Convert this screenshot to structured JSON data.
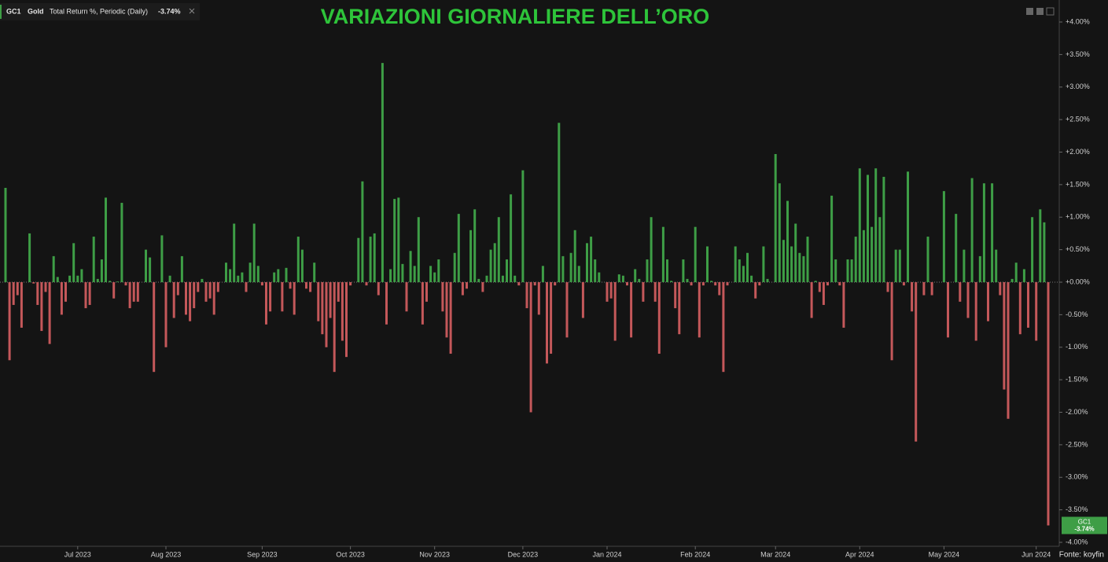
{
  "chart_data": {
    "type": "bar",
    "title": "VARIAZIONI GIORNALIERE DELL’ORO",
    "legend": {
      "ticker": "GC1",
      "name": "Gold",
      "metric": "Total Return %, Periodic (Daily)",
      "last_value": "-3.74%"
    },
    "source": "Fonte: koyfin",
    "up_color": "#3e9e46",
    "down_color": "#c4585a",
    "ylim": [
      -4,
      4
    ],
    "yticks": [
      {
        "value": 4,
        "label": "+4.00%"
      },
      {
        "value": 3.5,
        "label": "+3.50%"
      },
      {
        "value": 3,
        "label": "+3.00%"
      },
      {
        "value": 2.5,
        "label": "+2.50%"
      },
      {
        "value": 2,
        "label": "+2.00%"
      },
      {
        "value": 1.5,
        "label": "+1.50%"
      },
      {
        "value": 1,
        "label": "+1.00%"
      },
      {
        "value": 0.5,
        "label": "+0.50%"
      },
      {
        "value": 0,
        "label": "+0.00%"
      },
      {
        "value": -0.5,
        "label": "-0.50%"
      },
      {
        "value": -1,
        "label": "-1.00%"
      },
      {
        "value": -1.5,
        "label": "-1.50%"
      },
      {
        "value": -2,
        "label": "-2.00%"
      },
      {
        "value": -2.5,
        "label": "-2.50%"
      },
      {
        "value": -3,
        "label": "-3.00%"
      },
      {
        "value": -3.5,
        "label": "-3.50%"
      },
      {
        "value": -4,
        "label": "-4.00%"
      }
    ],
    "categories": [
      null,
      null,
      null,
      null,
      null,
      null,
      null,
      null,
      null,
      null,
      null,
      null,
      null,
      null,
      null,
      null,
      null,
      null,
      "Jul 2023",
      null,
      null,
      null,
      null,
      null,
      null,
      null,
      null,
      null,
      null,
      null,
      null,
      null,
      null,
      null,
      null,
      null,
      null,
      null,
      null,
      null,
      "Aug 2023",
      null,
      null,
      null,
      null,
      null,
      null,
      null,
      null,
      null,
      null,
      null,
      null,
      null,
      null,
      null,
      null,
      null,
      null,
      null,
      null,
      null,
      null,
      null,
      "Sep 2023",
      null,
      null,
      null,
      null,
      null,
      null,
      null,
      null,
      null,
      null,
      null,
      null,
      null,
      null,
      null,
      null,
      null,
      null,
      null,
      null,
      null,
      "Oct 2023",
      null,
      null,
      null,
      null,
      null,
      null,
      null,
      null,
      null,
      null,
      null,
      null,
      null,
      null,
      null,
      null,
      null,
      null,
      null,
      null,
      "Nov 2023",
      null,
      null,
      null,
      null,
      null,
      null,
      null,
      null,
      null,
      null,
      null,
      null,
      null,
      null,
      null,
      null,
      null,
      null,
      null,
      null,
      null,
      "Dec 2023",
      null,
      null,
      null,
      null,
      null,
      null,
      null,
      null,
      null,
      null,
      null,
      null,
      null,
      null,
      null,
      null,
      null,
      null,
      null,
      null,
      "Jan 2024",
      null,
      null,
      null,
      null,
      null,
      null,
      null,
      null,
      null,
      null,
      null,
      null,
      null,
      null,
      null,
      null,
      null,
      null,
      null,
      null,
      null,
      "Feb 2024",
      null,
      null,
      null,
      null,
      null,
      null,
      null,
      null,
      null,
      null,
      null,
      null,
      null,
      null,
      null,
      null,
      null,
      null,
      null,
      "Mar 2024",
      null,
      null,
      null,
      null,
      null,
      null,
      null,
      null,
      null,
      null,
      null,
      null,
      null,
      null,
      null,
      null,
      null,
      null,
      null,
      null,
      "Apr 2024",
      null,
      null,
      null,
      null,
      null,
      null,
      null,
      null,
      null,
      null,
      null,
      null,
      null,
      null,
      null,
      null,
      null,
      null,
      null,
      null,
      "May 2024",
      null,
      null,
      null,
      null,
      null,
      null,
      null,
      null,
      null,
      null,
      null,
      null,
      null,
      null,
      null,
      null,
      null,
      null,
      null,
      null,
      null,
      null,
      "Jun 2024",
      null,
      null,
      null
    ],
    "values": [
      1.45,
      -1.2,
      -0.35,
      -0.2,
      -0.7,
      0.0,
      0.75,
      -0.02,
      -0.35,
      -0.75,
      -0.15,
      -0.95,
      0.4,
      0.08,
      -0.5,
      -0.3,
      0.1,
      0.6,
      0.1,
      0.2,
      -0.4,
      -0.35,
      0.7,
      0.05,
      0.35,
      1.3,
      0.02,
      -0.25,
      0.01,
      1.22,
      -0.05,
      -0.4,
      -0.3,
      -0.3,
      0.0,
      0.5,
      0.38,
      -1.38,
      0.0,
      0.72,
      -1.0,
      0.1,
      -0.55,
      -0.2,
      0.4,
      -0.5,
      -0.6,
      -0.4,
      -0.15,
      0.05,
      -0.3,
      -0.25,
      -0.5,
      -0.15,
      0.0,
      0.3,
      0.2,
      0.9,
      0.1,
      0.15,
      -0.15,
      0.3,
      0.9,
      0.25,
      -0.05,
      -0.65,
      -0.45,
      0.15,
      0.2,
      -0.45,
      0.22,
      -0.1,
      -0.5,
      0.7,
      0.5,
      -0.1,
      -0.15,
      0.3,
      -0.6,
      -0.8,
      -1.0,
      -0.55,
      -1.38,
      -0.3,
      -0.9,
      -1.15,
      -0.05,
      0.0,
      0.68,
      1.55,
      -0.05,
      0.7,
      0.75,
      -0.2,
      3.37,
      -0.65,
      0.2,
      1.28,
      1.3,
      0.28,
      -0.45,
      0.48,
      0.25,
      1.0,
      -0.65,
      -0.3,
      0.25,
      0.15,
      0.35,
      -0.45,
      -0.85,
      -1.1,
      0.45,
      1.05,
      -0.2,
      -0.1,
      0.8,
      1.12,
      0.05,
      -0.15,
      0.1,
      0.5,
      0.6,
      1.0,
      0.1,
      0.35,
      1.35,
      0.1,
      -0.05,
      1.72,
      -0.4,
      -2.0,
      -0.05,
      -0.5,
      0.25,
      -1.25,
      -1.1,
      -0.05,
      2.45,
      0.4,
      -0.85,
      0.45,
      0.8,
      0.25,
      -0.55,
      0.6,
      0.7,
      0.35,
      0.15,
      0.0,
      -0.3,
      -0.25,
      -0.9,
      0.12,
      0.1,
      -0.05,
      -0.85,
      0.2,
      0.05,
      -0.3,
      0.35,
      1.0,
      -0.3,
      -1.1,
      0.85,
      0.35,
      0.02,
      -0.4,
      -0.8,
      0.35,
      0.05,
      -0.05,
      0.85,
      -0.85,
      -0.05,
      0.55,
      0.02,
      -0.05,
      -0.2,
      -1.38,
      -0.05,
      0.0,
      0.55,
      0.35,
      0.25,
      0.45,
      0.1,
      -0.25,
      -0.05,
      0.55,
      0.05,
      0.0,
      1.97,
      1.52,
      0.65,
      1.25,
      0.55,
      0.9,
      0.45,
      0.4,
      0.7,
      -0.55,
      0.02,
      -0.15,
      -0.35,
      -0.05,
      1.33,
      0.35,
      -0.05,
      -0.7,
      0.35,
      0.35,
      0.7,
      1.75,
      0.8,
      1.65,
      0.85,
      1.75,
      1.0,
      1.62,
      -0.15,
      -1.2,
      0.5,
      0.5,
      -0.05,
      1.7,
      -0.45,
      -2.45,
      0.0,
      -0.2,
      0.7,
      -0.2,
      0.0,
      0.0,
      1.4,
      -0.85,
      0.0,
      1.05,
      -0.3,
      0.5,
      -0.55,
      1.6,
      -0.9,
      0.4,
      1.52,
      -0.6,
      1.52,
      0.5,
      -0.2,
      -1.65,
      -2.1,
      0.05,
      0.3,
      -0.8,
      0.2,
      -0.7,
      1.0,
      -0.9,
      1.12,
      0.92,
      -3.74
    ]
  }
}
